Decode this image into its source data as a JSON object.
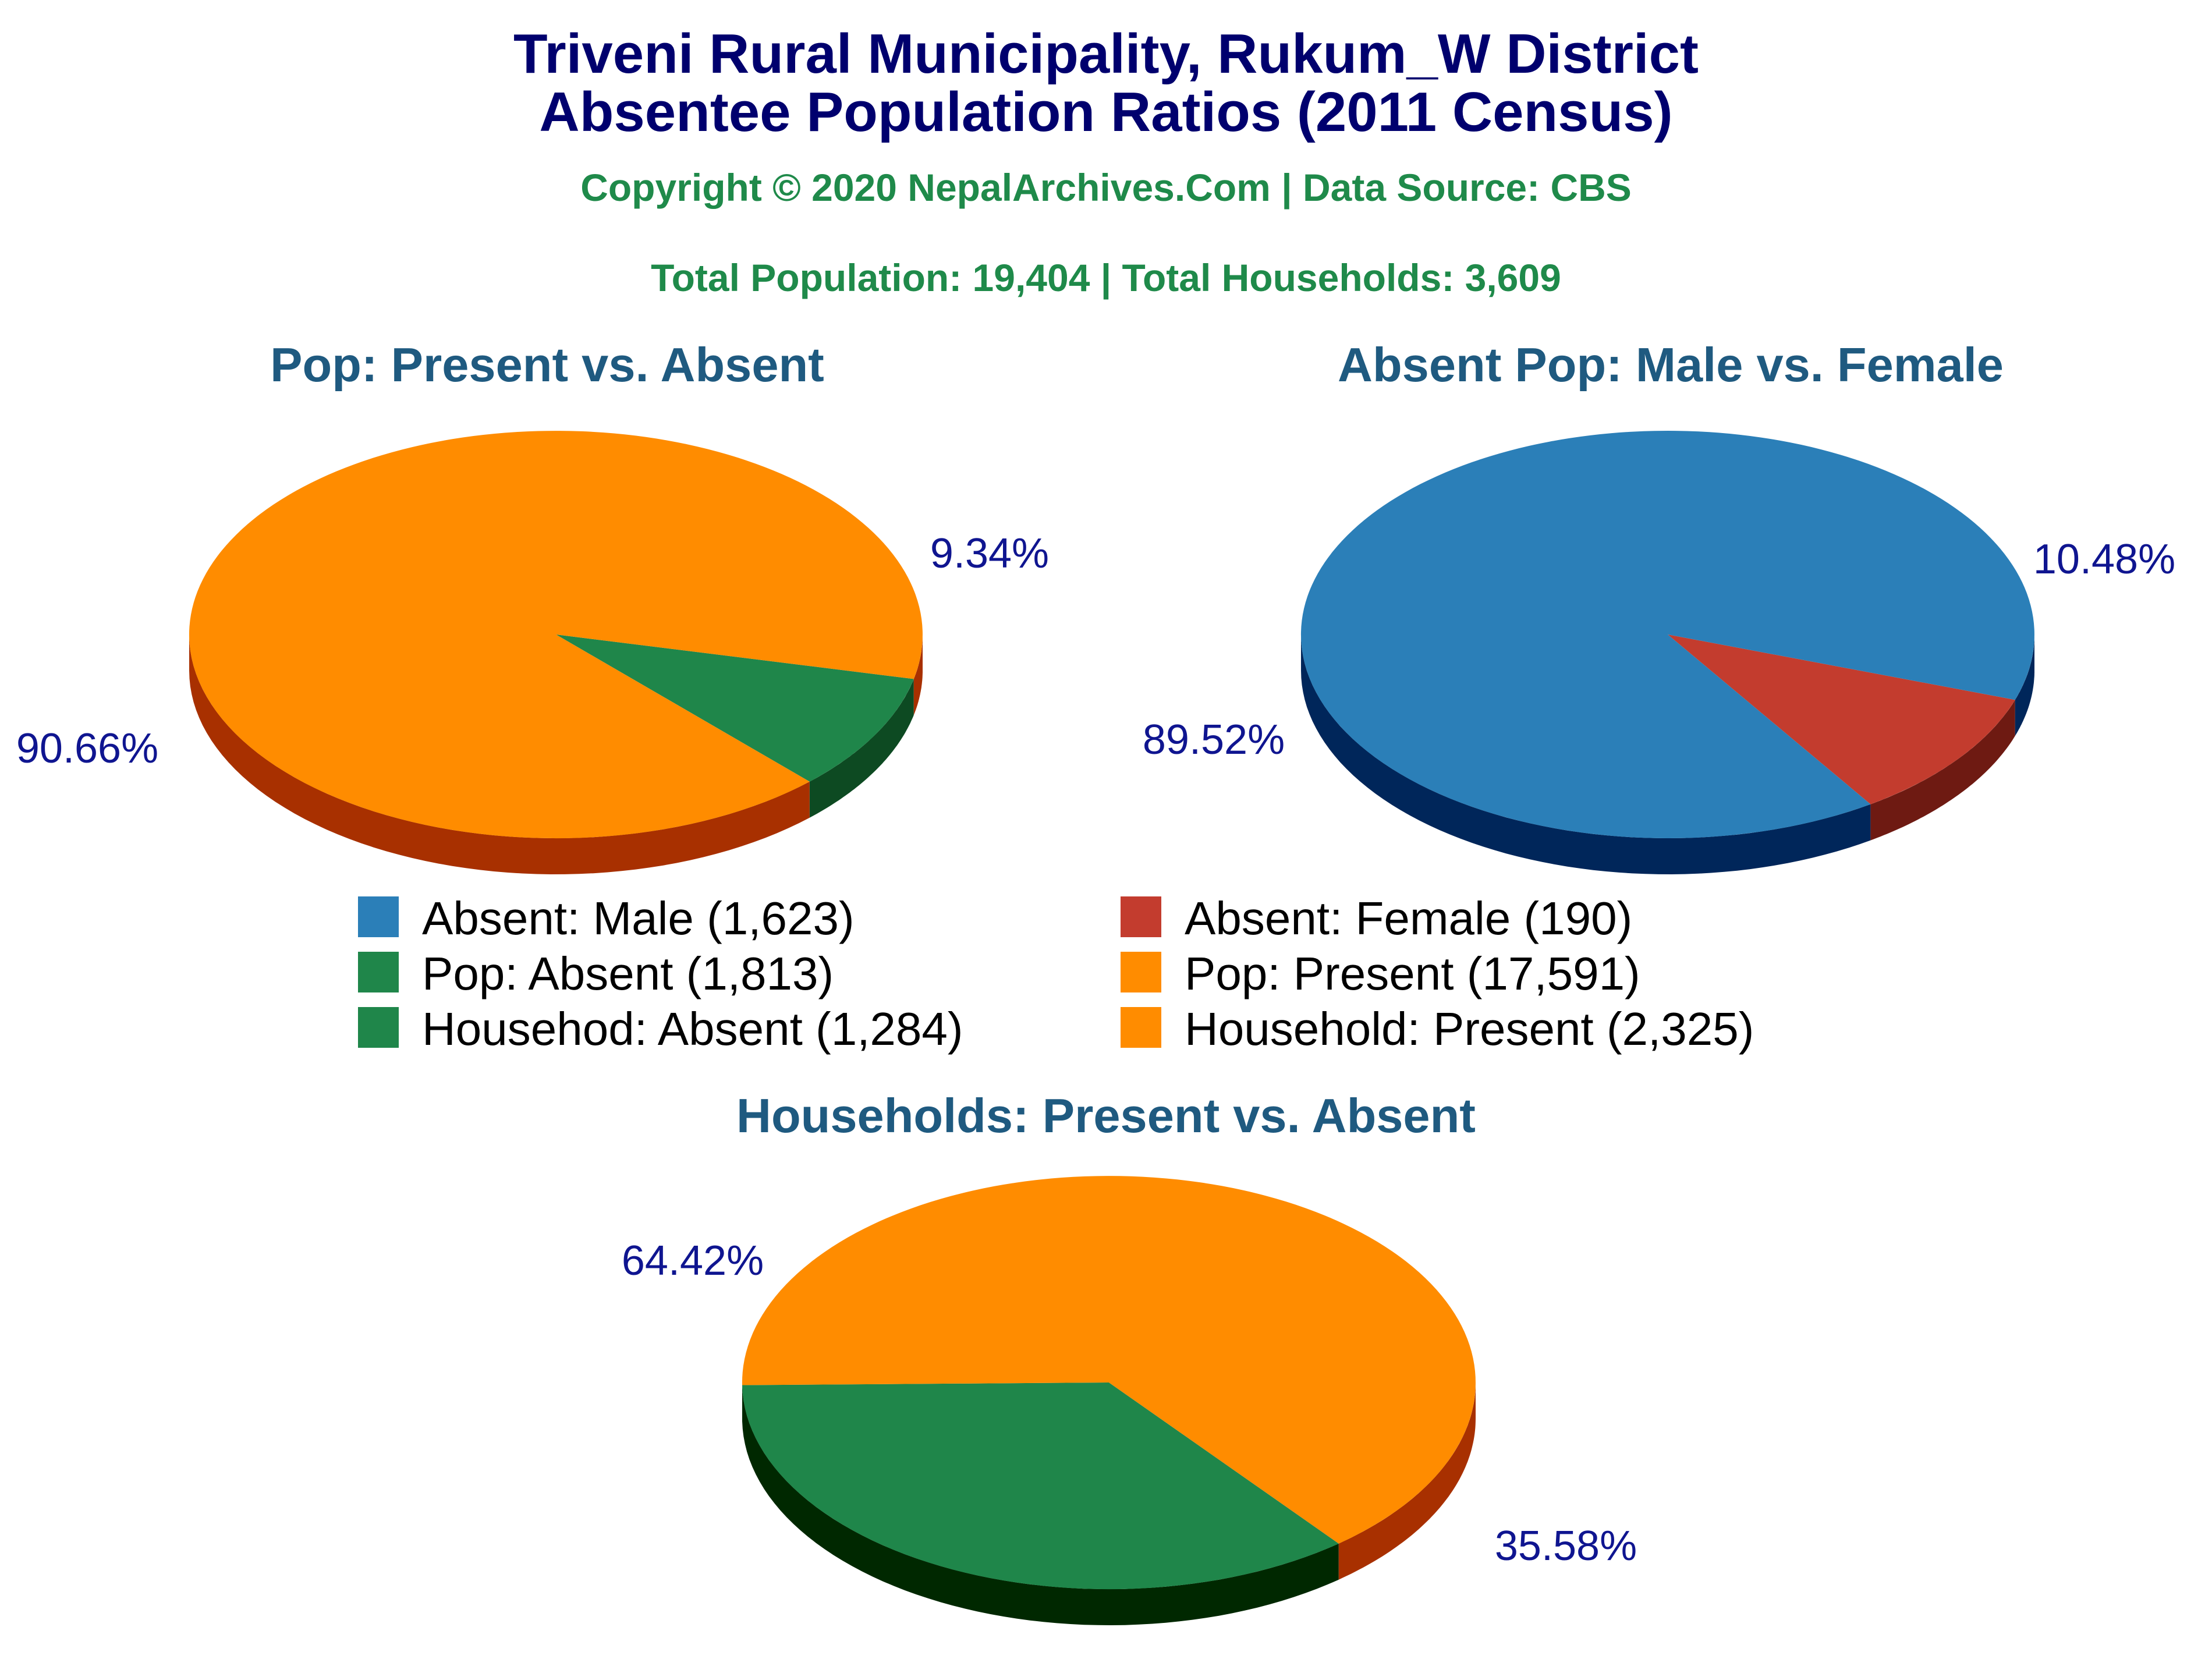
{
  "header": {
    "title_line1": "Triveni Rural Municipality, Rukum_W District",
    "title_line2": "Absentee Population Ratios (2011 Census)",
    "copyright": "Copyright © 2020 NepalArchives.Com | Data Source: CBS",
    "totals": "Total Population: 19,404 | Total Households: 3,609"
  },
  "legend": [
    {
      "label": "Absent: Male (1,623)",
      "color": "#2b7fb8"
    },
    {
      "label": "Absent: Female (190)",
      "color": "#c33c2e"
    },
    {
      "label": "Pop: Absent (1,813)",
      "color": "#1f864a"
    },
    {
      "label": "Pop: Present (17,591)",
      "color": "#ff8c00"
    },
    {
      "label": "Househod: Absent (1,284)",
      "color": "#1f864a"
    },
    {
      "label": "Household: Present (2,325)",
      "color": "#ff8c00"
    }
  ],
  "chart_data": [
    {
      "type": "pie",
      "title": "Pop: Present vs. Absent",
      "slices": [
        {
          "label": "Pop: Absent",
          "value": 1813,
          "percent_label": "9.34%",
          "color": "#1f864a",
          "side_color": "#0d4a22"
        },
        {
          "label": "Pop: Present",
          "value": 17591,
          "percent_label": "90.66%",
          "color": "#ff8c00",
          "side_color": "#a83000"
        }
      ]
    },
    {
      "type": "pie",
      "title": "Absent Pop: Male vs. Female",
      "slices": [
        {
          "label": "Absent: Female",
          "value": 190,
          "percent_label": "10.48%",
          "color": "#c33c2e",
          "side_color": "#6e1a12"
        },
        {
          "label": "Absent: Male",
          "value": 1623,
          "percent_label": "89.52%",
          "color": "#2b7fb8",
          "side_color": "#00265a"
        }
      ]
    },
    {
      "type": "pie",
      "title": "Households: Present vs. Absent",
      "slices": [
        {
          "label": "Household: Absent",
          "value": 1284,
          "percent_label": "35.58%",
          "color": "#1f864a",
          "side_color": "#002800"
        },
        {
          "label": "Household: Present",
          "value": 2325,
          "percent_label": "64.42%",
          "color": "#ff8c00",
          "side_color": "#a83000"
        }
      ]
    }
  ]
}
